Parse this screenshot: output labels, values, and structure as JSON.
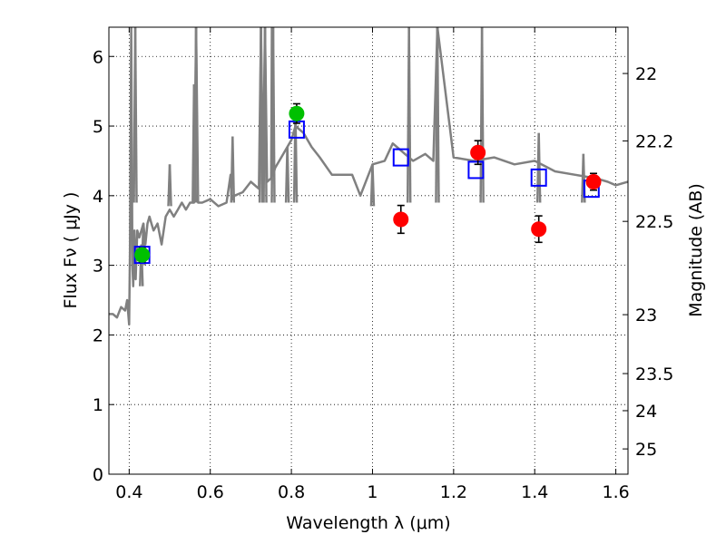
{
  "chart_data": {
    "type": "scatter",
    "xlabel": "Wavelength  λ (μm)",
    "ylabel": "Flux  Fν  ( μJy )",
    "y2label": "Magnitude (AB)",
    "xlim": [
      0.35,
      1.63
    ],
    "ylim": [
      0,
      6.42
    ],
    "grid": true,
    "x_ticks": [
      0.4,
      0.6,
      0.8,
      1.0,
      1.2,
      1.4,
      1.6
    ],
    "x_tick_labels": [
      "0.4",
      "0.6",
      "0.8",
      "1",
      "1.2",
      "1.4",
      "1.6"
    ],
    "y_ticks": [
      0,
      1,
      2,
      3,
      4,
      5,
      6
    ],
    "y_tick_labels": [
      "0",
      "1",
      "2",
      "3",
      "4",
      "5",
      "6"
    ],
    "y2_ticks": [
      {
        "flux": 5.755,
        "label": "22"
      },
      {
        "flux": 4.787,
        "label": "22.2"
      },
      {
        "flux": 3.631,
        "label": "22.5"
      },
      {
        "flux": 2.291,
        "label": "23"
      },
      {
        "flux": 1.445,
        "label": "23.5"
      },
      {
        "flux": 0.912,
        "label": "24"
      },
      {
        "flux": 0.363,
        "label": "25"
      }
    ],
    "colors": {
      "template": "#808080",
      "model": "#0000ff",
      "green_points": "#00c000",
      "red_points": "#ff0000",
      "grid": "#000000"
    },
    "series": [
      {
        "kind": "line",
        "x": [
          0.35,
          0.36,
          0.37,
          0.38,
          0.39,
          0.395,
          0.4,
          0.402,
          0.405,
          0.408,
          0.41,
          0.413,
          0.416,
          0.42,
          0.425,
          0.43,
          0.435,
          0.44,
          0.445,
          0.45,
          0.455,
          0.46,
          0.47,
          0.48,
          0.49,
          0.5,
          0.51,
          0.52,
          0.53,
          0.54,
          0.55,
          0.56,
          0.565,
          0.57,
          0.58,
          0.6,
          0.62,
          0.64,
          0.65,
          0.652,
          0.655,
          0.66,
          0.68,
          0.7,
          0.72,
          0.725,
          0.73,
          0.735,
          0.74,
          0.75,
          0.752,
          0.755,
          0.76,
          0.78,
          0.8,
          0.81,
          0.83,
          0.85,
          0.87,
          0.9,
          0.95,
          0.97,
          1.0,
          1.03,
          1.05,
          1.06,
          1.08,
          1.1,
          1.13,
          1.15,
          1.16,
          1.2,
          1.25,
          1.3,
          1.35,
          1.4,
          1.45,
          1.5,
          1.55,
          1.58,
          1.6,
          1.63
        ],
        "y": [
          2.3,
          2.3,
          2.25,
          2.4,
          2.35,
          2.5,
          2.15,
          3.2,
          6.42,
          3.0,
          2.7,
          3.5,
          2.8,
          3.5,
          3.4,
          3.5,
          3.6,
          3.3,
          3.6,
          3.7,
          3.6,
          3.5,
          3.6,
          3.3,
          3.7,
          3.8,
          3.7,
          3.8,
          3.9,
          3.8,
          3.9,
          3.9,
          6.42,
          3.9,
          3.9,
          3.95,
          3.85,
          3.9,
          4.3,
          4.0,
          3.95,
          4.0,
          4.05,
          4.2,
          4.1,
          6.42,
          4.2,
          6.42,
          4.2,
          4.25,
          6.42,
          4.3,
          4.4,
          4.6,
          4.8,
          5.0,
          4.9,
          4.7,
          4.55,
          4.3,
          4.3,
          4.0,
          4.45,
          4.5,
          4.75,
          4.7,
          4.6,
          4.5,
          4.6,
          4.5,
          6.42,
          4.55,
          4.5,
          4.55,
          4.45,
          4.5,
          4.35,
          4.3,
          4.25,
          4.2,
          4.15,
          4.2
        ]
      },
      {
        "kind": "emission_lines",
        "x": [
          0.415,
          0.43,
          0.435,
          0.5,
          0.56,
          0.565,
          0.655,
          0.725,
          0.735,
          0.755,
          0.79,
          0.81,
          1.0,
          1.09,
          1.16,
          1.27,
          1.41,
          1.52
        ],
        "y": [
          6.42,
          3.3,
          3.6,
          4.45,
          5.6,
          6.42,
          4.85,
          6.42,
          6.42,
          6.42,
          4.7,
          5.2,
          4.45,
          6.42,
          6.42,
          6.42,
          4.9,
          4.6
        ]
      },
      {
        "kind": "model_squares",
        "x": [
          0.432,
          0.813,
          1.07,
          1.255,
          1.41,
          1.54
        ],
        "y": [
          3.15,
          4.95,
          4.55,
          4.37,
          4.26,
          4.1
        ]
      },
      {
        "kind": "points_green",
        "x": [
          0.432,
          0.813
        ],
        "y": [
          3.15,
          5.18
        ],
        "yerr": [
          0.1,
          0.14
        ]
      },
      {
        "kind": "points_red",
        "x": [
          1.07,
          1.26,
          1.41,
          1.545
        ],
        "y": [
          3.66,
          4.62,
          3.52,
          4.2
        ],
        "yerr": [
          0.2,
          0.17,
          0.19,
          0.12
        ]
      }
    ]
  }
}
